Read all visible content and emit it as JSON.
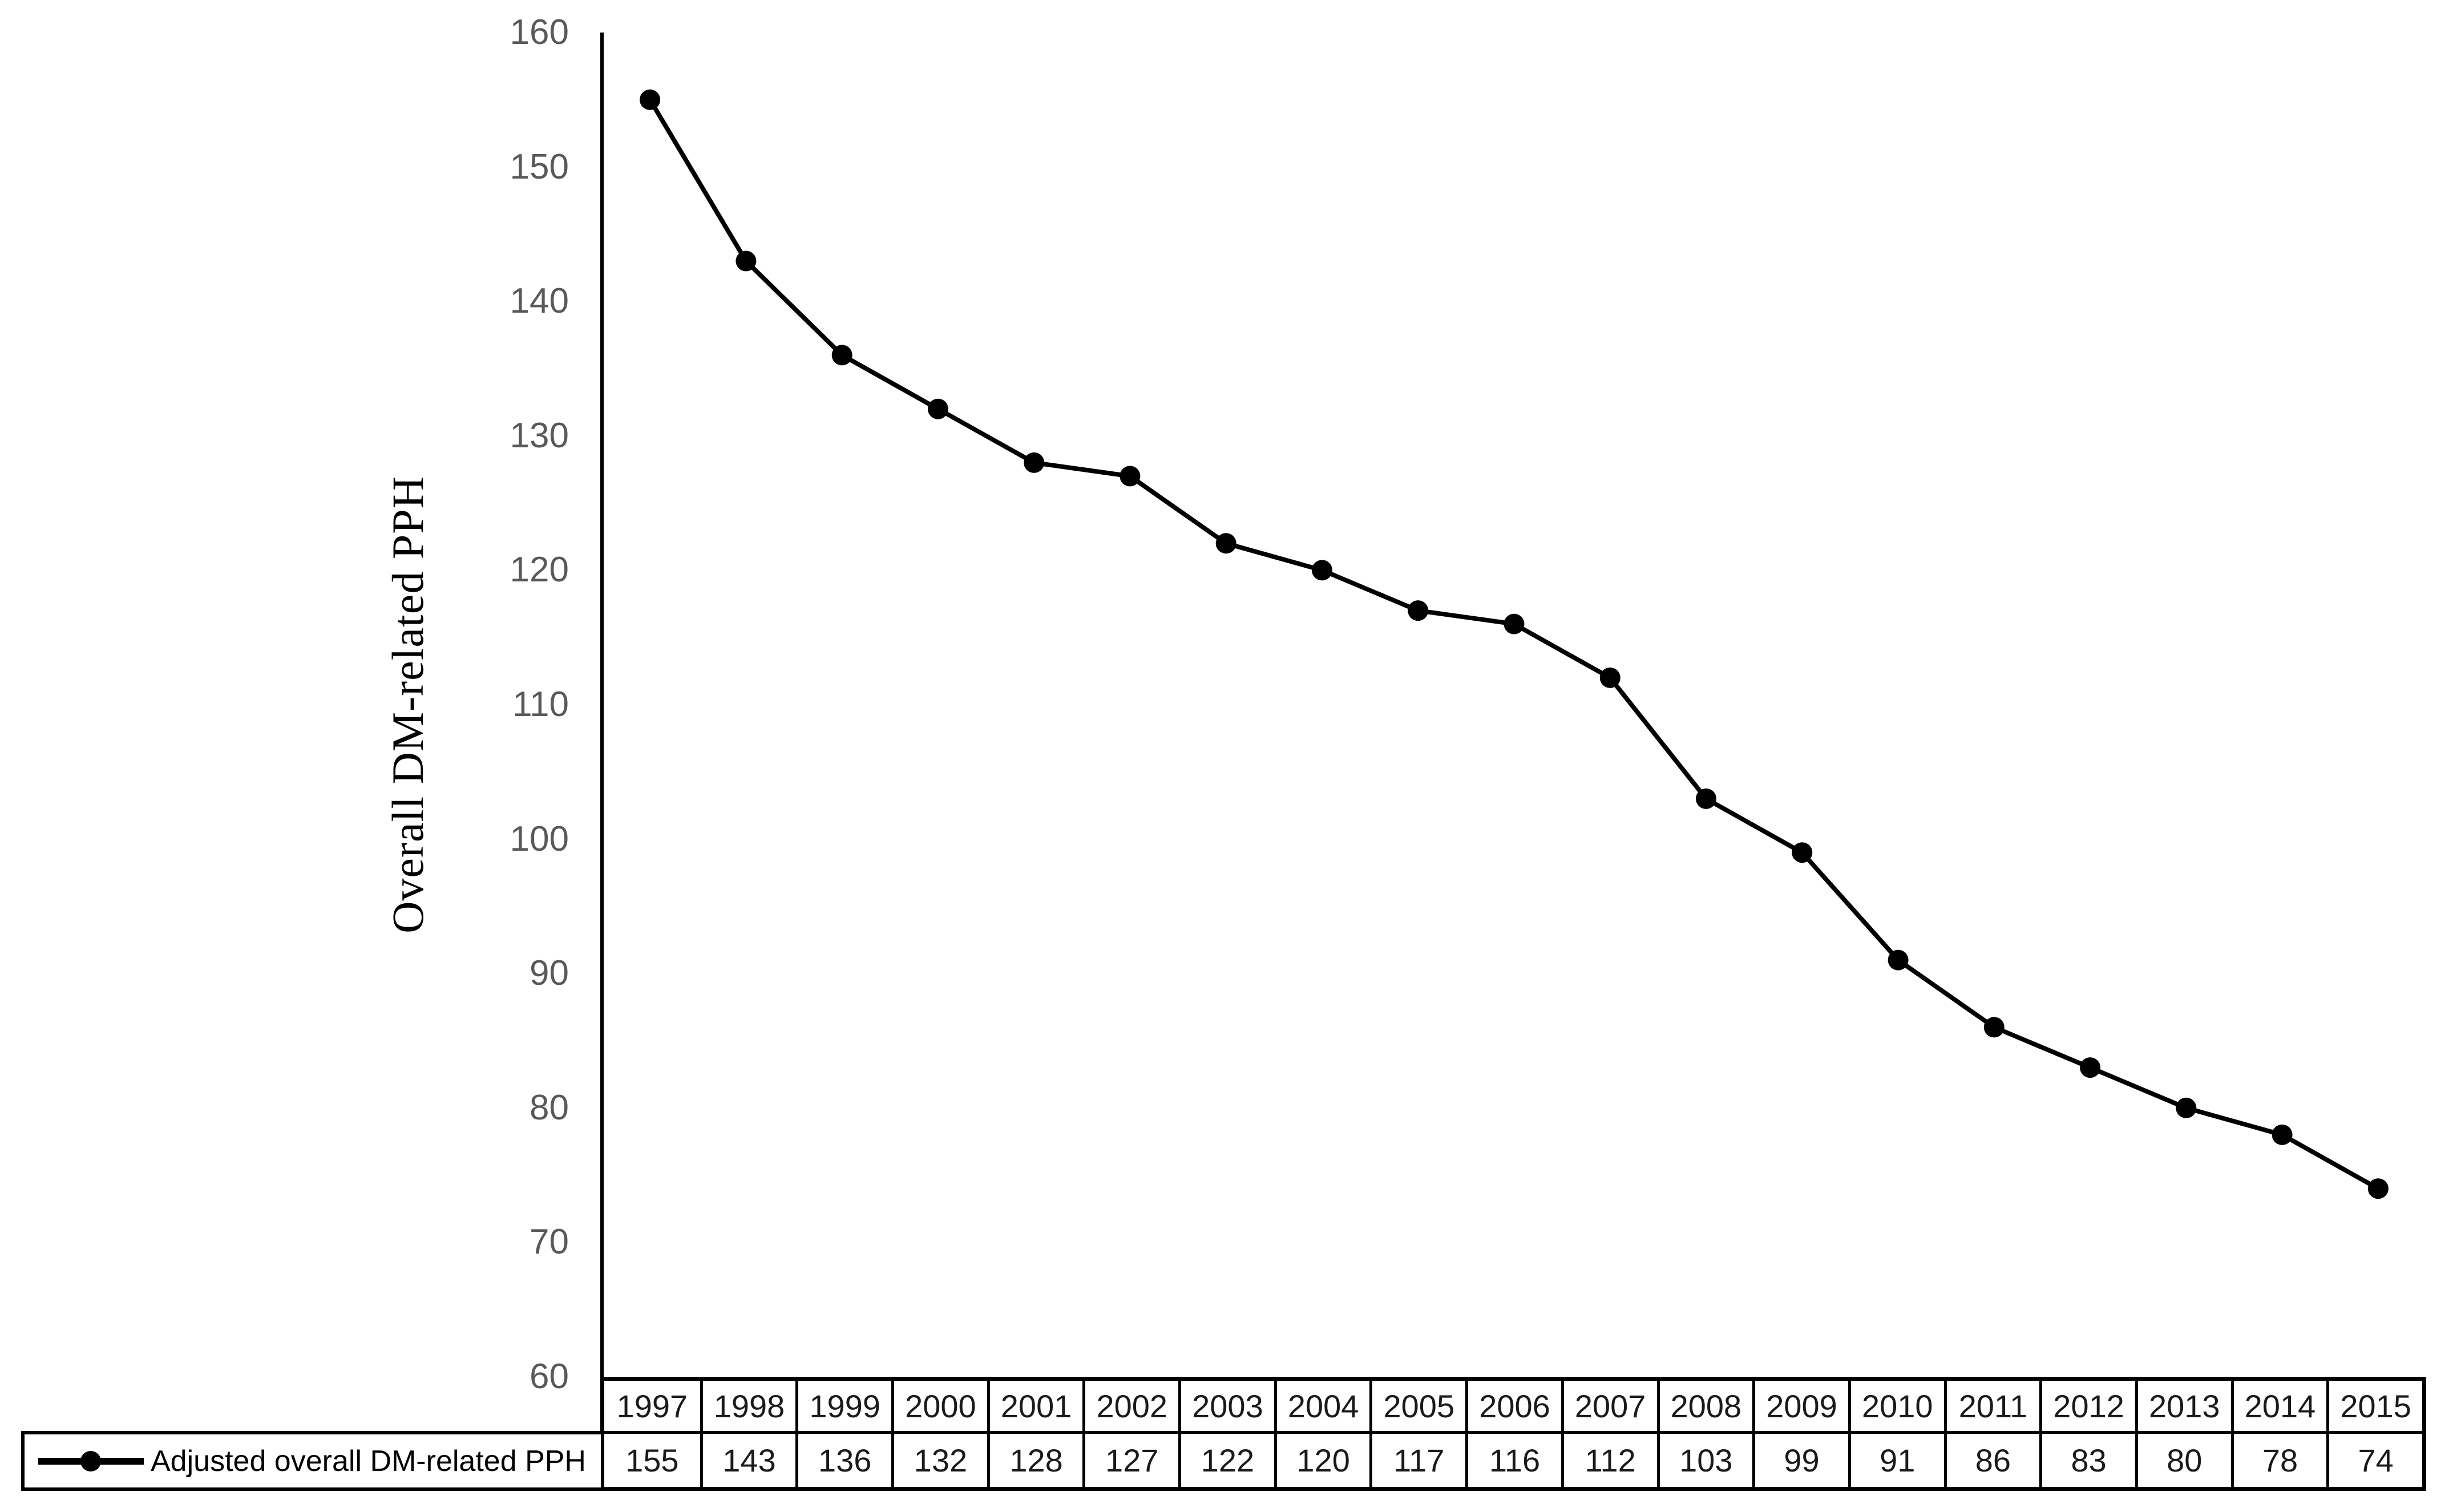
{
  "chart": {
    "y_axis_title": "Overall DM-related PPH",
    "legend_label": "Adjusted overall DM-related PPH"
  },
  "chart_data": {
    "type": "line",
    "title": "",
    "xlabel": "",
    "ylabel": "Overall DM-related PPH",
    "ylim": [
      60,
      160
    ],
    "y_ticks": [
      160,
      150,
      140,
      130,
      120,
      110,
      100,
      90,
      80,
      70,
      60
    ],
    "grid": false,
    "legend_position": "bottom-table-left",
    "marker": "circle",
    "line_color": "#000000",
    "tick_label_color": "#595959",
    "categories": [
      "1997",
      "1998",
      "1999",
      "2000",
      "2001",
      "2002",
      "2003",
      "2004",
      "2005",
      "2006",
      "2007",
      "2008",
      "2009",
      "2010",
      "2011",
      "2012",
      "2013",
      "2014",
      "2015"
    ],
    "series": [
      {
        "name": "Adjusted overall DM-related PPH",
        "values": [
          155,
          143,
          136,
          132,
          128,
          127,
          122,
          120,
          117,
          116,
          112,
          103,
          99,
          91,
          86,
          83,
          80,
          78,
          74
        ]
      }
    ]
  }
}
